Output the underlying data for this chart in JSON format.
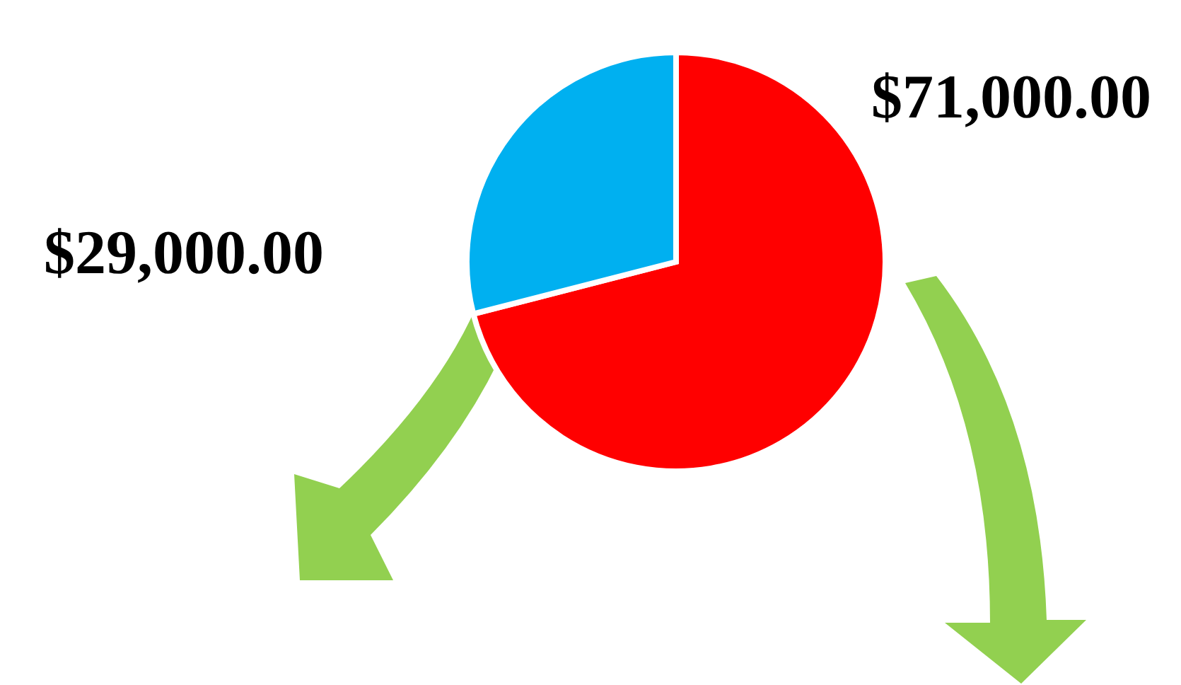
{
  "chart_data": {
    "type": "pie",
    "categories": [
      null,
      null
    ],
    "values": [
      71000,
      29000
    ],
    "colors": [
      "#ff0000",
      "#00b0f0"
    ],
    "value_labels": [
      "$71,000.00",
      "$29,000.00"
    ]
  }
}
